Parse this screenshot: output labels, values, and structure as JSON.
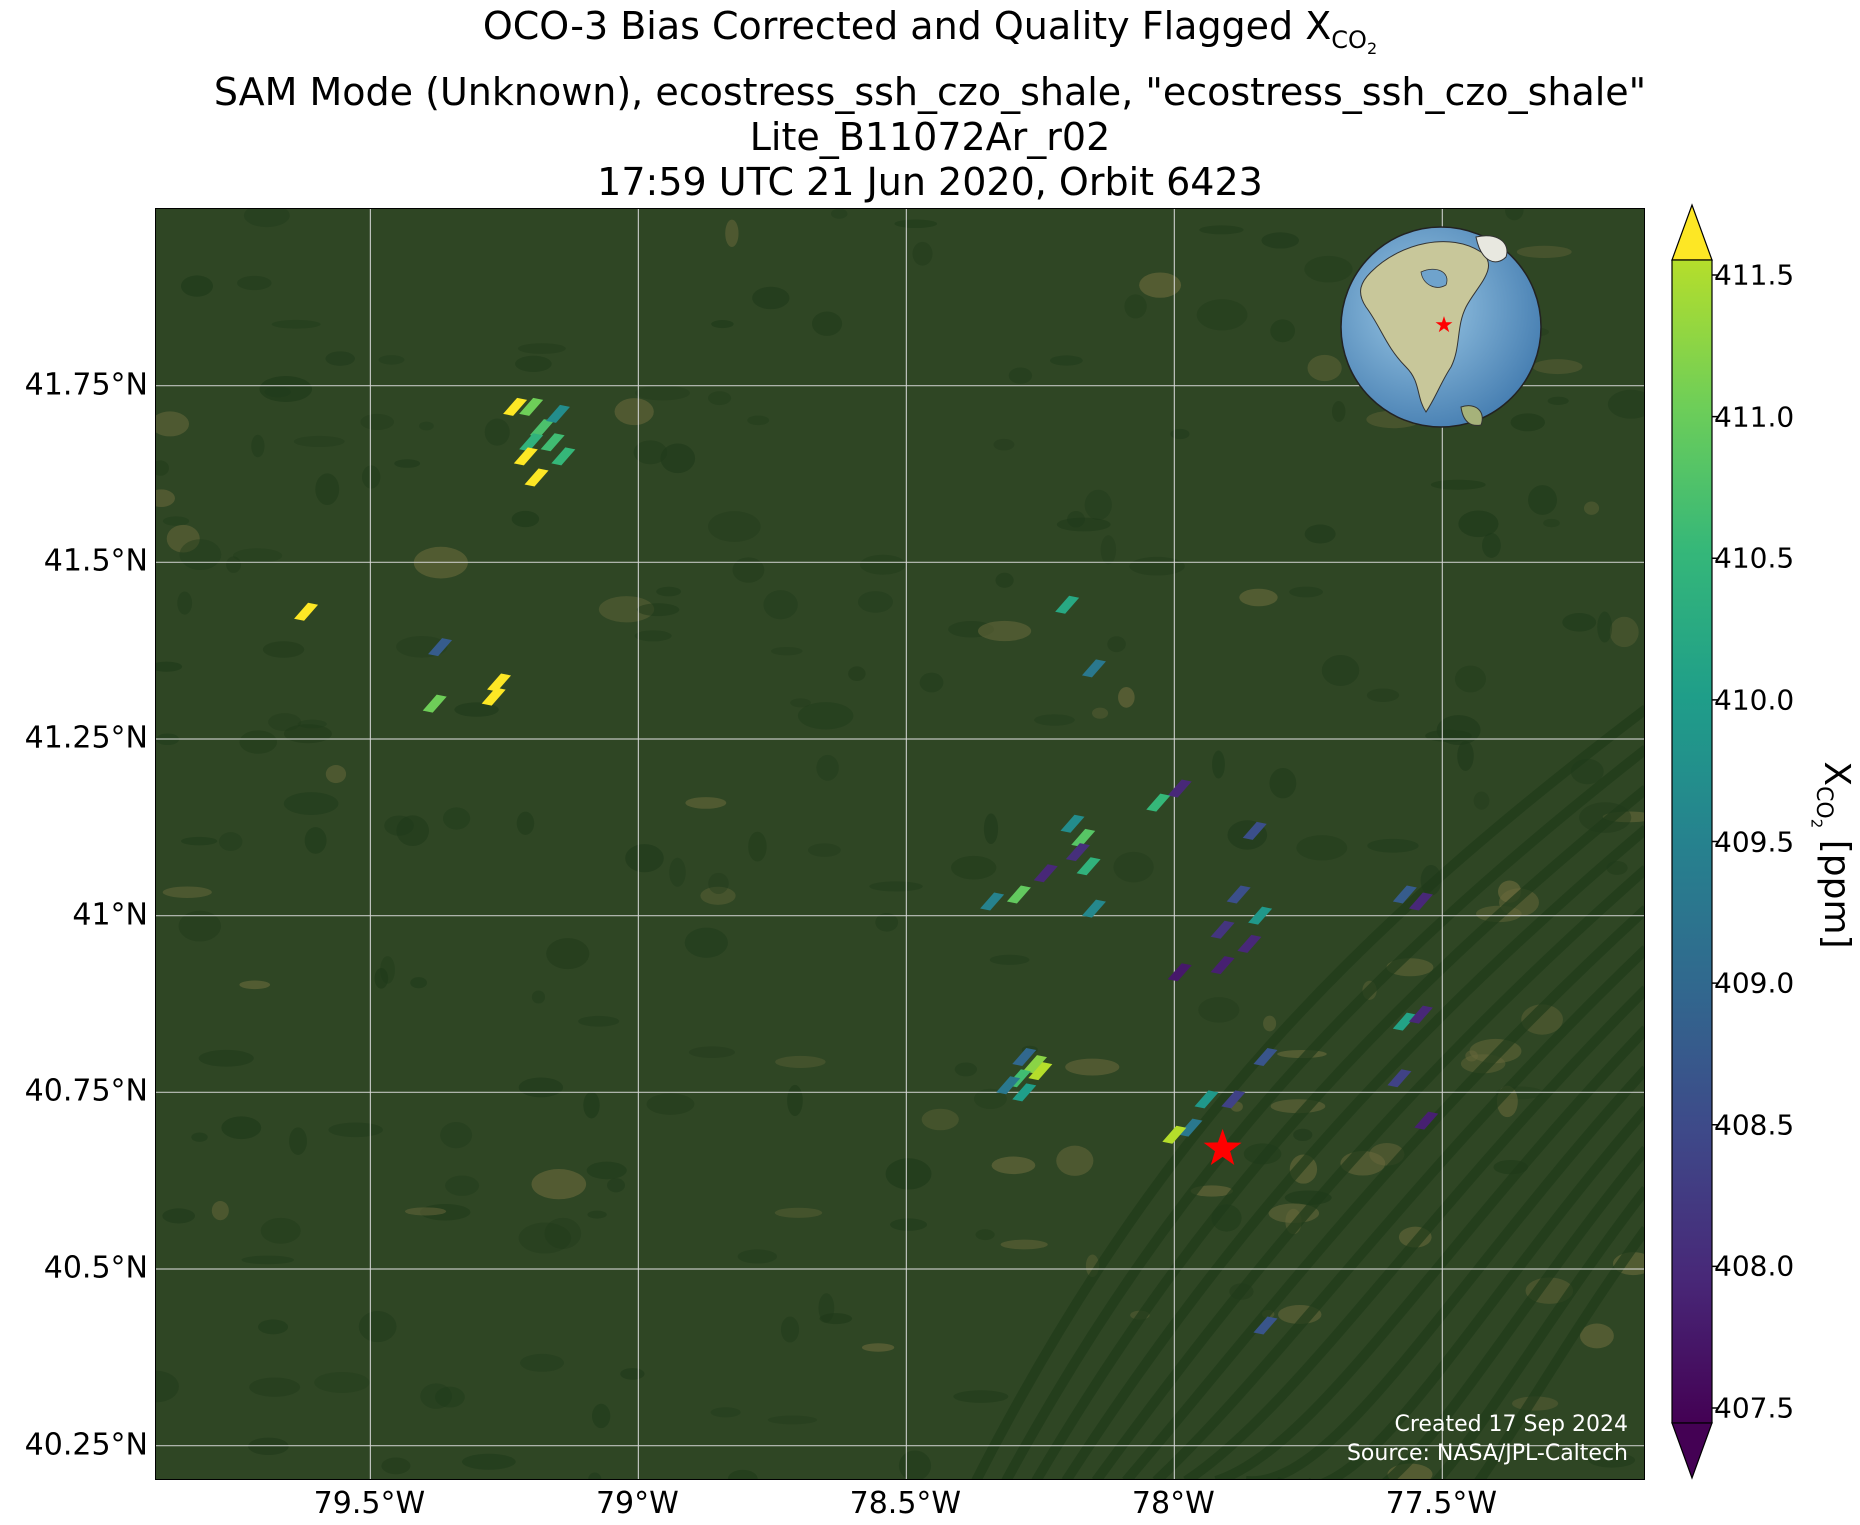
{
  "title": {
    "line1_prefix": "OCO-3 Bias Corrected and Quality Flagged X",
    "line1_sub": "CO",
    "line1_sub2": "2",
    "line2": "SAM Mode (Unknown), ecostress_ssh_czo_shale, \"ecostress_ssh_czo_shale\"",
    "line3": "Lite_B11072Ar_r02",
    "line4": "17:59 UTC 21 Jun 2020, Orbit 6423"
  },
  "map": {
    "lon_range": [
      -79.9,
      -77.12
    ],
    "lat_range": [
      40.2,
      42.0
    ],
    "lat_ticks": [
      {
        "value": 41.75,
        "label": "41.75°N"
      },
      {
        "value": 41.5,
        "label": "41.5°N"
      },
      {
        "value": 41.25,
        "label": "41.25°N"
      },
      {
        "value": 41.0,
        "label": "41°N"
      },
      {
        "value": 40.75,
        "label": "40.75°N"
      },
      {
        "value": 40.5,
        "label": "40.5°N"
      },
      {
        "value": 40.25,
        "label": "40.25°N"
      }
    ],
    "lon_ticks": [
      {
        "value": -79.5,
        "label": "79.5°W"
      },
      {
        "value": -79.0,
        "label": "79°W"
      },
      {
        "value": -78.5,
        "label": "78.5°W"
      },
      {
        "value": -78.0,
        "label": "78°W"
      },
      {
        "value": -77.5,
        "label": "77.5°W"
      }
    ],
    "target": {
      "lon": -77.91,
      "lat": 40.67,
      "color": "#ff0000"
    },
    "colors": {
      "land": "#2f4624",
      "ridge": "#1f3a1a",
      "farmland": "#6b6a3c",
      "grid": "#d9d9d9"
    }
  },
  "chart_data": {
    "type": "scatter",
    "variable": "XCO2",
    "units": "ppm",
    "points": [
      {
        "lon": -79.23,
        "lat": 41.72,
        "value": 411.6
      },
      {
        "lon": -79.2,
        "lat": 41.72,
        "value": 411.0
      },
      {
        "lon": -79.18,
        "lat": 41.69,
        "value": 410.7
      },
      {
        "lon": -79.15,
        "lat": 41.71,
        "value": 409.7
      },
      {
        "lon": -79.16,
        "lat": 41.67,
        "value": 410.6
      },
      {
        "lon": -79.2,
        "lat": 41.67,
        "value": 410.4
      },
      {
        "lon": -79.14,
        "lat": 41.65,
        "value": 410.5
      },
      {
        "lon": -79.21,
        "lat": 41.65,
        "value": 411.6
      },
      {
        "lon": -79.19,
        "lat": 41.62,
        "value": 411.6
      },
      {
        "lon": -79.62,
        "lat": 41.43,
        "value": 411.7
      },
      {
        "lon": -79.37,
        "lat": 41.38,
        "value": 408.8
      },
      {
        "lon": -79.26,
        "lat": 41.33,
        "value": 411.7
      },
      {
        "lon": -79.27,
        "lat": 41.31,
        "value": 411.6
      },
      {
        "lon": -79.38,
        "lat": 41.3,
        "value": 411.0
      },
      {
        "lon": -78.2,
        "lat": 41.44,
        "value": 410.2
      },
      {
        "lon": -78.15,
        "lat": 41.35,
        "value": 409.3
      },
      {
        "lon": -77.99,
        "lat": 41.18,
        "value": 408.0
      },
      {
        "lon": -78.03,
        "lat": 41.16,
        "value": 410.5
      },
      {
        "lon": -78.19,
        "lat": 41.13,
        "value": 409.7
      },
      {
        "lon": -77.85,
        "lat": 41.12,
        "value": 408.6
      },
      {
        "lon": -78.17,
        "lat": 41.11,
        "value": 410.8
      },
      {
        "lon": -78.18,
        "lat": 41.09,
        "value": 408.1
      },
      {
        "lon": -78.16,
        "lat": 41.07,
        "value": 410.4
      },
      {
        "lon": -78.24,
        "lat": 41.06,
        "value": 408.0
      },
      {
        "lon": -78.29,
        "lat": 41.03,
        "value": 410.9
      },
      {
        "lon": -78.34,
        "lat": 41.02,
        "value": 409.5
      },
      {
        "lon": -78.15,
        "lat": 41.01,
        "value": 409.6
      },
      {
        "lon": -77.88,
        "lat": 41.03,
        "value": 408.6
      },
      {
        "lon": -77.84,
        "lat": 41.0,
        "value": 409.9
      },
      {
        "lon": -77.91,
        "lat": 40.98,
        "value": 408.2
      },
      {
        "lon": -77.86,
        "lat": 40.96,
        "value": 408.0
      },
      {
        "lon": -77.91,
        "lat": 40.93,
        "value": 407.9
      },
      {
        "lon": -77.99,
        "lat": 40.92,
        "value": 407.8
      },
      {
        "lon": -77.57,
        "lat": 41.03,
        "value": 408.8
      },
      {
        "lon": -77.54,
        "lat": 41.02,
        "value": 408.0
      },
      {
        "lon": -77.57,
        "lat": 40.85,
        "value": 410.1
      },
      {
        "lon": -77.54,
        "lat": 40.86,
        "value": 408.0
      },
      {
        "lon": -77.83,
        "lat": 40.8,
        "value": 408.7
      },
      {
        "lon": -78.28,
        "lat": 40.8,
        "value": 409.0
      },
      {
        "lon": -78.26,
        "lat": 40.79,
        "value": 411.2
      },
      {
        "lon": -78.25,
        "lat": 40.78,
        "value": 411.5
      },
      {
        "lon": -78.29,
        "lat": 40.77,
        "value": 410.6
      },
      {
        "lon": -78.31,
        "lat": 40.76,
        "value": 409.3
      },
      {
        "lon": -78.28,
        "lat": 40.75,
        "value": 410.0
      },
      {
        "lon": -77.58,
        "lat": 40.77,
        "value": 408.4
      },
      {
        "lon": -77.94,
        "lat": 40.74,
        "value": 409.9
      },
      {
        "lon": -77.89,
        "lat": 40.74,
        "value": 408.4
      },
      {
        "lon": -77.53,
        "lat": 40.71,
        "value": 407.9
      },
      {
        "lon": -77.97,
        "lat": 40.7,
        "value": 409.3
      },
      {
        "lon": -78.0,
        "lat": 40.69,
        "value": 411.5
      },
      {
        "lon": -77.83,
        "lat": 40.42,
        "value": 408.7
      }
    ],
    "colorbar": {
      "label_main": "X",
      "label_sub": "CO",
      "label_sub2": "2",
      "label_units": " [ppm]",
      "range": [
        407.5,
        411.5
      ],
      "colormap": "viridis",
      "extend": "both",
      "ticks": [
        "407.5",
        "408.0",
        "408.5",
        "409.0",
        "409.5",
        "410.0",
        "410.5",
        "411.0",
        "411.5"
      ]
    }
  },
  "credits": {
    "line1": "Created 17 Sep 2024",
    "line2": "Source: NASA/JPL-Caltech"
  }
}
